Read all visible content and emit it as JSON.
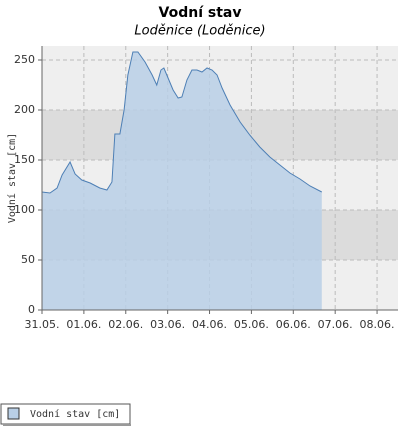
{
  "chart_data": {
    "type": "area",
    "title": "Vodní stav",
    "subtitle": "Loděnice (Loděnice)",
    "y_label": "Vodní stav [cm]",
    "x": [
      0,
      0.19,
      0.36,
      0.48,
      0.67,
      0.79,
      0.95,
      1.15,
      1.38,
      1.55,
      1.67,
      1.74,
      1.86,
      1.96,
      2.05,
      2.17,
      2.29,
      2.46,
      2.63,
      2.74,
      2.84,
      2.91,
      3.01,
      3.13,
      3.25,
      3.34,
      3.46,
      3.58,
      3.7,
      3.82,
      3.94,
      4.06,
      4.18,
      4.3,
      4.49,
      4.73,
      4.96,
      5.2,
      5.44,
      5.68,
      5.92,
      6.16,
      6.4,
      6.68
    ],
    "series": [
      {
        "name": "Vodní stav [cm]",
        "color": "#4d7fb5",
        "fill": "#b9cfe6",
        "values": [
          118,
          117,
          122,
          135,
          148,
          136,
          130,
          127,
          122,
          120,
          128,
          176,
          176,
          200,
          235,
          258,
          258,
          248,
          235,
          225,
          240,
          242,
          232,
          220,
          212,
          213,
          230,
          240,
          240,
          238,
          242,
          240,
          235,
          222,
          205,
          188,
          175,
          163,
          153,
          145,
          137,
          131,
          124,
          118
        ]
      }
    ],
    "xlim": [
      0,
      8.5
    ],
    "xticks": [
      {
        "value": 0,
        "label": "31.05."
      },
      {
        "value": 1,
        "label": "01.06."
      },
      {
        "value": 2,
        "label": "02.06."
      },
      {
        "value": 3,
        "label": "03.06."
      },
      {
        "value": 4,
        "label": "04.06."
      },
      {
        "value": 5,
        "label": "05.06."
      },
      {
        "value": 6,
        "label": "06.06."
      },
      {
        "value": 7,
        "label": "07.06."
      },
      {
        "value": 8,
        "label": "08.06."
      }
    ],
    "ylim": [
      0,
      264
    ],
    "yticks": [
      0,
      50,
      100,
      150,
      200,
      250
    ],
    "grid": true
  }
}
